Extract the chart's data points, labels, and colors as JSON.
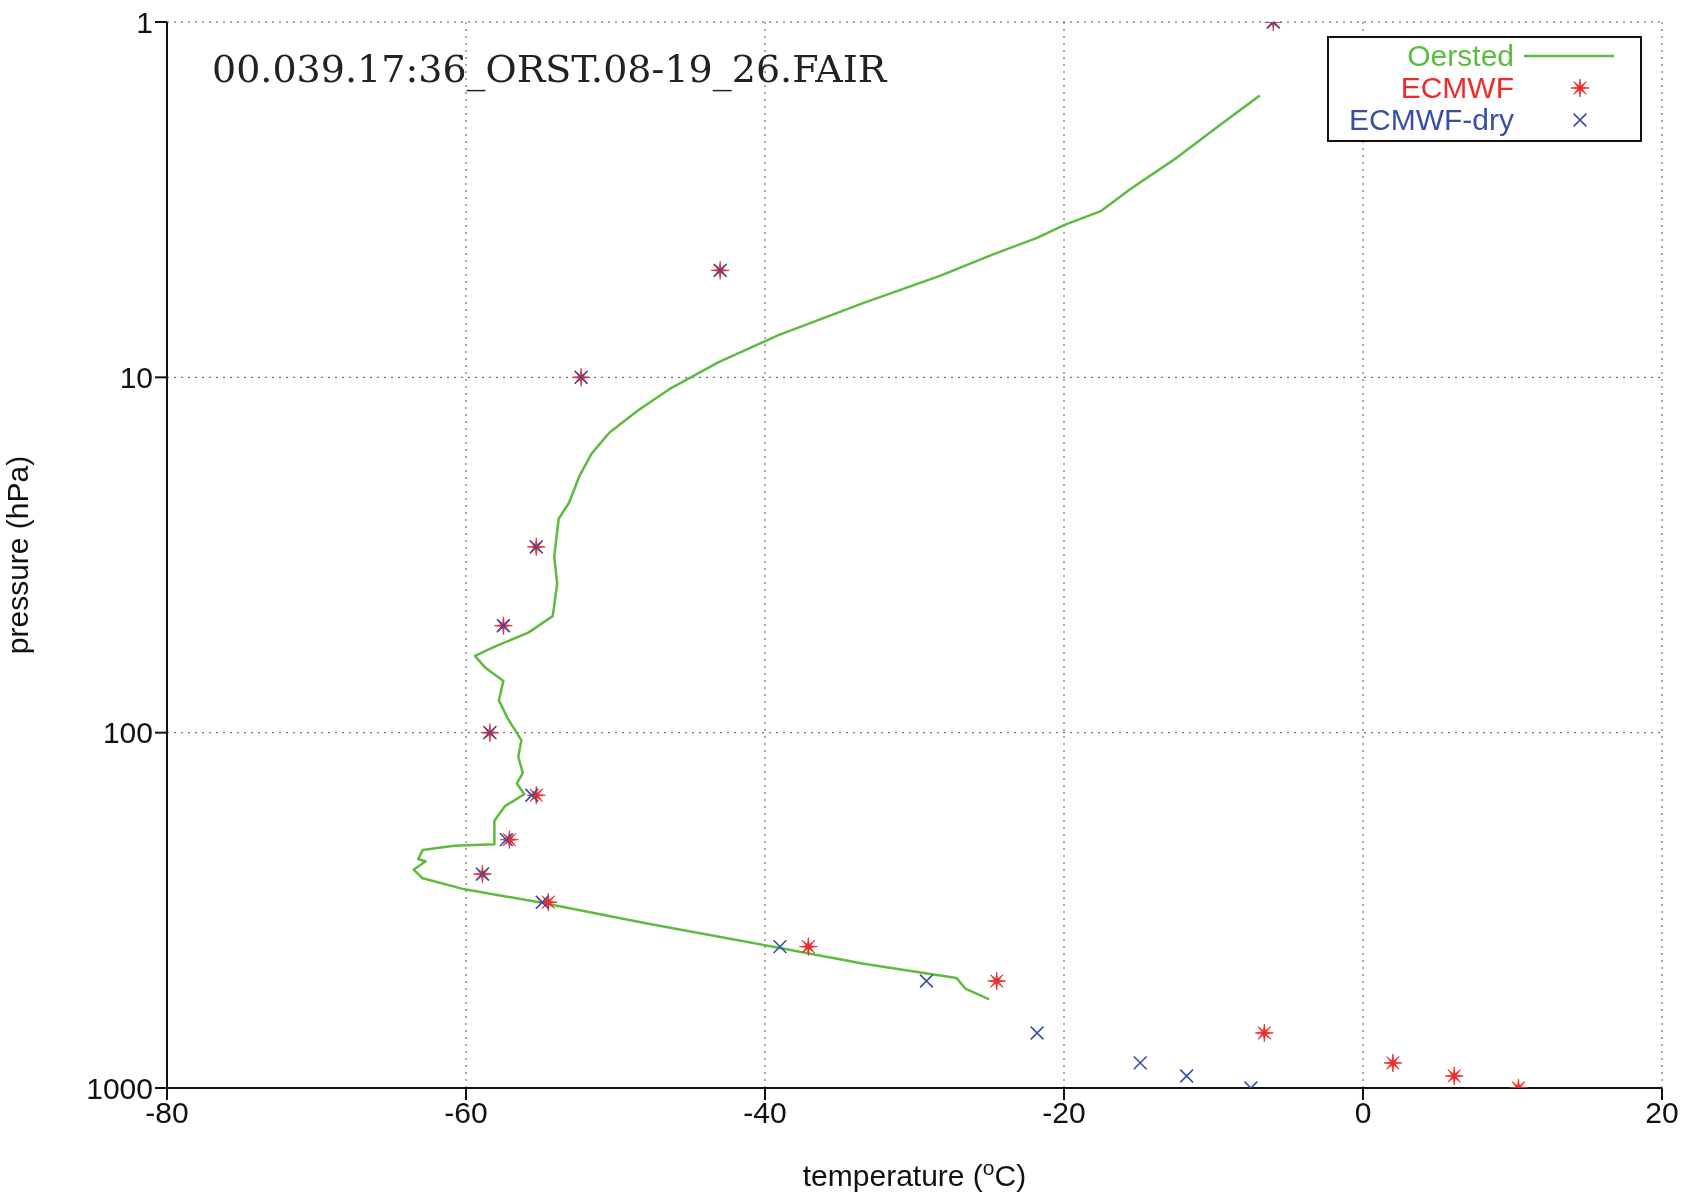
{
  "chart_data": {
    "type": "scatter",
    "title": "00.039.17:36_ORST.08-19_26.FAIR",
    "xlabel": "temperature ($^{o}$C)",
    "ylabel": "pressure (hPa)",
    "xlim": [
      -80,
      20
    ],
    "xticks": [
      -80,
      -60,
      -40,
      -20,
      0,
      20
    ],
    "ylim": [
      1000,
      1
    ],
    "yticks": [
      1,
      10,
      100,
      1000
    ],
    "log": "y",
    "grid": true,
    "legend": "top right",
    "series": [
      {
        "name": "Oersted",
        "type": "line",
        "color": "#5dbb3f",
        "line_style": "solid",
        "marker": "none",
        "x": [
          -6.9,
          -9.5,
          -12.4,
          -15.6,
          -17.5,
          -20.0,
          -21.8,
          -24.7,
          -28.3,
          -33.4,
          -39.1,
          -43.1,
          -46.4,
          -48.5,
          -50.4,
          -51.6,
          -52.4,
          -53.1,
          -53.8,
          -54.1,
          -53.9,
          -54.2,
          -55.8,
          -58.0,
          -59.4,
          -58.7,
          -57.5,
          -57.8,
          -57.2,
          -56.3,
          -56.5,
          -56.2,
          -56.6,
          -56.1,
          -57.4,
          -58.1,
          -58.1,
          -60.8,
          -62.9,
          -63.2,
          -62.7,
          -63.5,
          -62.9,
          -60.1,
          -55.1,
          -47.8,
          -39.1,
          -33.4,
          -27.2,
          -26.6,
          -25.0
        ],
        "values": [
          1.61,
          1.94,
          2.4,
          2.96,
          3.4,
          3.73,
          4.05,
          4.5,
          5.18,
          6.17,
          7.61,
          9.06,
          10.8,
          12.4,
          14.3,
          16.4,
          18.9,
          22.5,
          25,
          32,
          38.1,
          47,
          52.2,
          57.1,
          60.8,
          65.7,
          71.5,
          81.1,
          91.3,
          105,
          117,
          130,
          139,
          149,
          161,
          177,
          206,
          208,
          214,
          227,
          230,
          243,
          257,
          276,
          300,
          345,
          403,
          447,
          490,
          525,
          563
        ]
      },
      {
        "name": "ECMWF",
        "type": "scatter",
        "color": "#ee2a2a",
        "marker": "star",
        "x": [
          -6.0,
          -43.0,
          -52.3,
          -55.3,
          -57.5,
          -58.4,
          -55.3,
          -57.1,
          -58.9,
          -54.5,
          -37.1,
          -24.5,
          -6.6,
          2.0,
          6.1,
          10.4
        ],
        "values": [
          1,
          5,
          10,
          30,
          50,
          100,
          150,
          200,
          250,
          300,
          400,
          500,
          700,
          850,
          925,
          1000
        ]
      },
      {
        "name": "ECMWF-dry",
        "type": "scatter",
        "color": "#3a4fa3",
        "marker": "cross",
        "x": [
          -6.0,
          -43.0,
          -52.3,
          -55.3,
          -57.5,
          -58.4,
          -55.6,
          -57.3,
          -58.9,
          -54.9,
          -39.0,
          -29.2,
          -21.8,
          -14.9,
          -11.8,
          -7.5
        ],
        "values": [
          1,
          5,
          10,
          30,
          50,
          100,
          150,
          200,
          250,
          300,
          400,
          500,
          700,
          850,
          925,
          1000
        ]
      }
    ]
  }
}
